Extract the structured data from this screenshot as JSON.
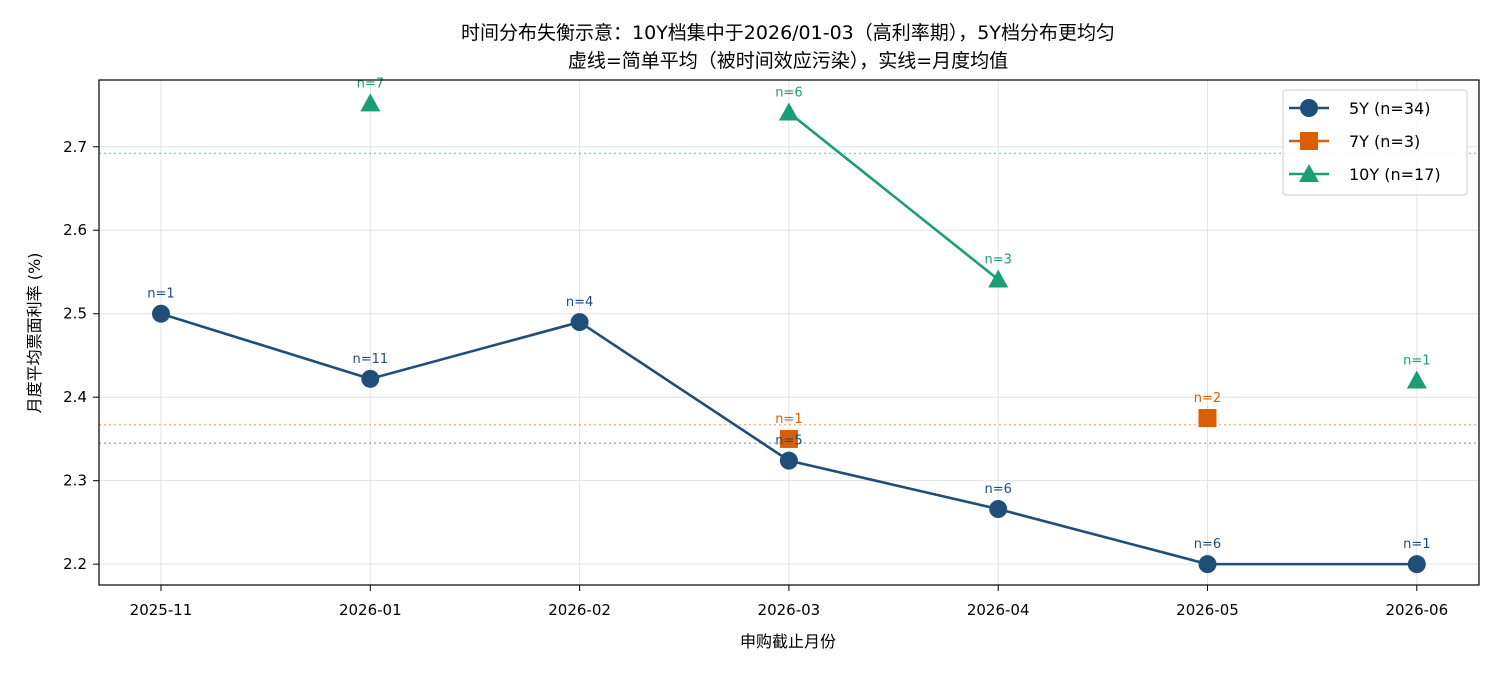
{
  "chart_data": {
    "type": "line",
    "title_lines": [
      "时间分布失衡示意：10Y档集中于2026/01-03（高利率期），5Y档分布更均匀",
      "虚线=简单平均（被时间效应污染），实线=月度均值"
    ],
    "xlabel": "申购截止月份",
    "ylabel": "月度平均票面利率 (%)",
    "categories": [
      "2025-11",
      "2026-01",
      "2026-02",
      "2026-03",
      "2026-04",
      "2026-05",
      "2026-06"
    ],
    "ylim": [
      2.175,
      2.78
    ],
    "yticks": [
      2.2,
      2.3,
      2.4,
      2.5,
      2.6,
      2.7
    ],
    "ytick_labels": [
      "2.2",
      "2.3",
      "2.4",
      "2.5",
      "2.6",
      "2.7"
    ],
    "grid": true,
    "legend_position": "top-right",
    "series": [
      {
        "name": "5Y (n=34)",
        "color": "#1f4e79",
        "marker": "circle",
        "x": [
          "2025-11",
          "2026-01",
          "2026-02",
          "2026-03",
          "2026-04",
          "2026-05",
          "2026-06"
        ],
        "y": [
          2.5,
          2.422,
          2.49,
          2.324,
          2.266,
          2.2,
          2.2
        ],
        "counts": [
          "n=1",
          "n=11",
          "n=4",
          "n=5",
          "n=6",
          "n=6",
          "n=1"
        ],
        "simple_mean": 2.345
      },
      {
        "name": "7Y (n=3)",
        "color": "#d95f02",
        "marker": "square",
        "x": [
          "2026-03",
          "2026-05"
        ],
        "y": [
          2.35,
          2.375
        ],
        "counts": [
          "n=1",
          "n=2"
        ],
        "simple_mean": 2.367
      },
      {
        "name": "10Y (n=17)",
        "color": "#1b9e77",
        "marker": "triangle",
        "x": [
          "2026-01",
          "2026-03",
          "2026-04",
          "2026-06"
        ],
        "y": [
          2.752,
          2.741,
          2.541,
          2.42
        ],
        "counts": [
          "n=7",
          "n=6",
          "n=3",
          "n=1"
        ],
        "simple_mean": 2.692
      }
    ]
  }
}
